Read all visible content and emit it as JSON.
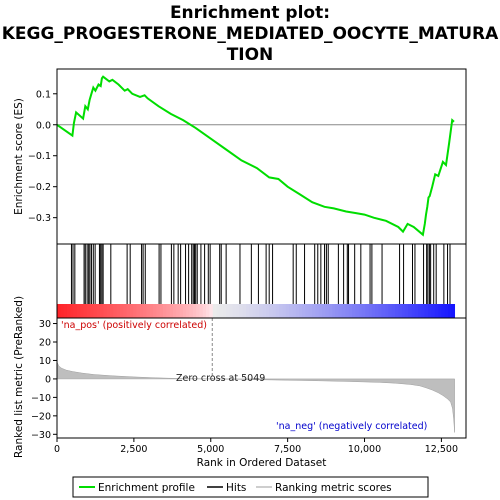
{
  "title_line1": "Enrichment plot:",
  "title_line2": "KEGG_PROGESTERONE_MEDIATED_OOCYTE_MATURA",
  "title_line3": "TION",
  "legend": {
    "enrichment": "Enrichment profile",
    "hits": "Hits",
    "ranking": "Ranking metric scores"
  },
  "colors": {
    "enrichment_line": "#00dd00",
    "hit_line": "#000000",
    "ranking_fill": "#bebebe",
    "pos_annotation": "#cc0000",
    "neg_annotation": "#0000cc"
  },
  "chart_data": [
    {
      "type": "line",
      "ylabel": "Enrichment score (ES)",
      "xlim": [
        0,
        13300
      ],
      "ylim": [
        -0.385,
        0.18
      ],
      "yticks": [
        0.1,
        0.0,
        -0.1,
        -0.2,
        -0.3
      ],
      "ytick_labels": [
        "0.1",
        "0.0",
        "−0.1",
        "−0.2",
        "−0.3"
      ],
      "series": [
        {
          "name": "Enrichment profile",
          "x": [
            0,
            500,
            550,
            620,
            850,
            920,
            1000,
            1060,
            1120,
            1180,
            1250,
            1350,
            1420,
            1460,
            1500,
            1700,
            1800,
            2000,
            2200,
            2300,
            2450,
            2700,
            2850,
            2950,
            3300,
            3700,
            4100,
            4500,
            5000,
            5500,
            6000,
            6500,
            6900,
            7200,
            7500,
            7900,
            8300,
            8700,
            9000,
            9400,
            9700,
            10000,
            10300,
            10700,
            11100,
            11250,
            11400,
            11600,
            11900,
            11960,
            12000,
            12040,
            12080,
            12120,
            12200,
            12300,
            12400,
            12550,
            12650,
            12750,
            12850,
            12910
          ],
          "y": [
            0.0,
            -0.035,
            0.005,
            0.04,
            0.02,
            0.06,
            0.05,
            0.08,
            0.1,
            0.12,
            0.11,
            0.13,
            0.125,
            0.15,
            0.155,
            0.14,
            0.145,
            0.13,
            0.11,
            0.115,
            0.1,
            0.09,
            0.095,
            0.085,
            0.06,
            0.035,
            0.015,
            -0.01,
            -0.045,
            -0.08,
            -0.115,
            -0.14,
            -0.17,
            -0.175,
            -0.2,
            -0.225,
            -0.25,
            -0.265,
            -0.27,
            -0.28,
            -0.285,
            -0.29,
            -0.3,
            -0.31,
            -0.33,
            -0.345,
            -0.32,
            -0.33,
            -0.355,
            -0.32,
            -0.29,
            -0.265,
            -0.235,
            -0.23,
            -0.2,
            -0.16,
            -0.165,
            -0.12,
            -0.13,
            -0.06,
            0.015,
            0.01
          ]
        }
      ]
    },
    {
      "type": "hits",
      "positions": [
        470,
        520,
        580,
        880,
        920,
        980,
        1030,
        1070,
        1120,
        1180,
        1240,
        1380,
        1420,
        1460,
        1500,
        1750,
        2280,
        2380,
        2750,
        2800,
        2870,
        3320,
        3380,
        3720,
        3800,
        3940,
        4020,
        4180,
        4280,
        4380,
        4430,
        4470,
        4510,
        4560,
        4680,
        4800,
        4920,
        4980,
        5290,
        5340,
        5500,
        5950,
        6320,
        6550,
        6800,
        6900,
        7010,
        7680,
        7780,
        8050,
        8380,
        8480,
        8580,
        8700,
        8760,
        8820,
        9150,
        9320,
        9440,
        9480,
        9680,
        9880,
        10180,
        10240,
        10570,
        11140,
        11270,
        11560,
        11640,
        11920,
        12020,
        12060,
        12110,
        12150,
        12250,
        12330,
        12580,
        12700,
        12780
      ]
    },
    {
      "type": "area",
      "ylabel": "Ranked list metric (PreRanked)",
      "xlabel": "Rank in Ordered Dataset",
      "xlim": [
        0,
        13300
      ],
      "ylim": [
        -32,
        33
      ],
      "yticks": [
        30,
        20,
        10,
        0,
        -10,
        -20,
        -30
      ],
      "ytick_labels": [
        "30",
        "20",
        "10",
        "0",
        "−10",
        "−20",
        "−30"
      ],
      "xticks": [
        0,
        2500,
        5000,
        7500,
        10000,
        12500
      ],
      "xtick_labels": [
        "0",
        "2,500",
        "5,000",
        "7,500",
        "10,000",
        "12,500"
      ],
      "x": [
        0,
        60,
        150,
        300,
        500,
        800,
        1200,
        1800,
        2500,
        3200,
        4000,
        4600,
        5049,
        5600,
        6500,
        7500,
        8500,
        9500,
        10500,
        11000,
        11500,
        11800,
        12000,
        12200,
        12400,
        12550,
        12700,
        12800,
        12860,
        12900,
        12930
      ],
      "values": [
        9.2,
        7.0,
        5.8,
        4.8,
        4.0,
        3.2,
        2.4,
        1.7,
        1.1,
        0.6,
        0.25,
        0.08,
        0.0,
        -0.15,
        -0.4,
        -0.7,
        -1.0,
        -1.4,
        -1.9,
        -2.3,
        -3.0,
        -3.8,
        -4.8,
        -6.0,
        -7.5,
        -9.0,
        -10.8,
        -12.5,
        -16,
        -22,
        -29
      ],
      "zero_cross": 5049,
      "annotations": {
        "pos": "'na_pos' (positively correlated)",
        "neg": "'na_neg' (negatively correlated)",
        "zero": "Zero cross at 5049"
      }
    }
  ]
}
